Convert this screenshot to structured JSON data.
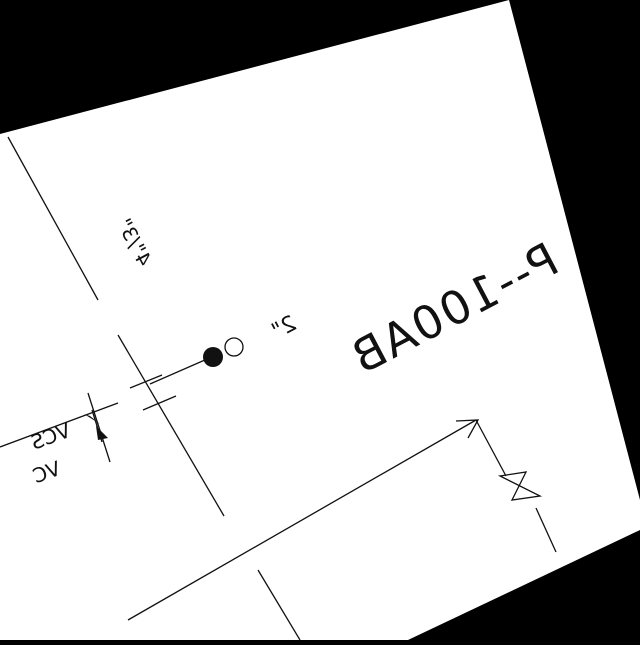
{
  "drawing": {
    "background_color": "#000000",
    "sheet_color": "#ffffff",
    "ink_color": "#111111",
    "labels": {
      "main_tag": "P--100AB",
      "pipe_size": "2\"",
      "reducer": "4\"/3\"",
      "spec_a": "VCS",
      "spec_b": "VC"
    },
    "symbols": [
      "flow-arrow-icon",
      "gate-valve-icon",
      "pipe-end-cap-icon",
      "reducer-icon",
      "dimension-arrows-icon"
    ]
  }
}
